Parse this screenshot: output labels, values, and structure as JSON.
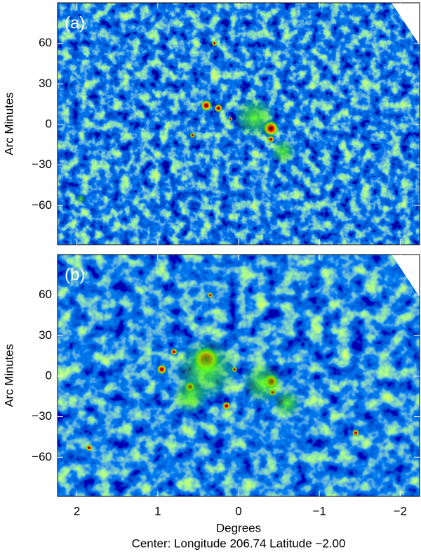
{
  "chart_data": [
    {
      "type": "heatmap",
      "panel_label": "(a)",
      "ylabel": "Arc Minutes",
      "ylim": [
        -89,
        90
      ],
      "yticks": [
        {
          "value": -60,
          "label": "−60"
        },
        {
          "value": -30,
          "label": "−30"
        },
        0,
        30,
        60
      ]
    },
    {
      "type": "heatmap",
      "panel_label": "(b)",
      "ylabel": "Arc Minutes",
      "xlabel": "Degrees",
      "note": "Center:  Longitude 206.74 Latitude −2.00",
      "ylim": [
        -89,
        90
      ],
      "yticks": [
        {
          "value": -60,
          "label": "−60"
        },
        {
          "value": -30,
          "label": "−30"
        },
        0,
        30,
        60
      ],
      "xlim": [
        2.24,
        -2.24
      ],
      "xticks": [
        2,
        1,
        0,
        {
          "value": -1,
          "label": "−1"
        },
        {
          "value": -2,
          "label": "−2"
        }
      ]
    }
  ]
}
